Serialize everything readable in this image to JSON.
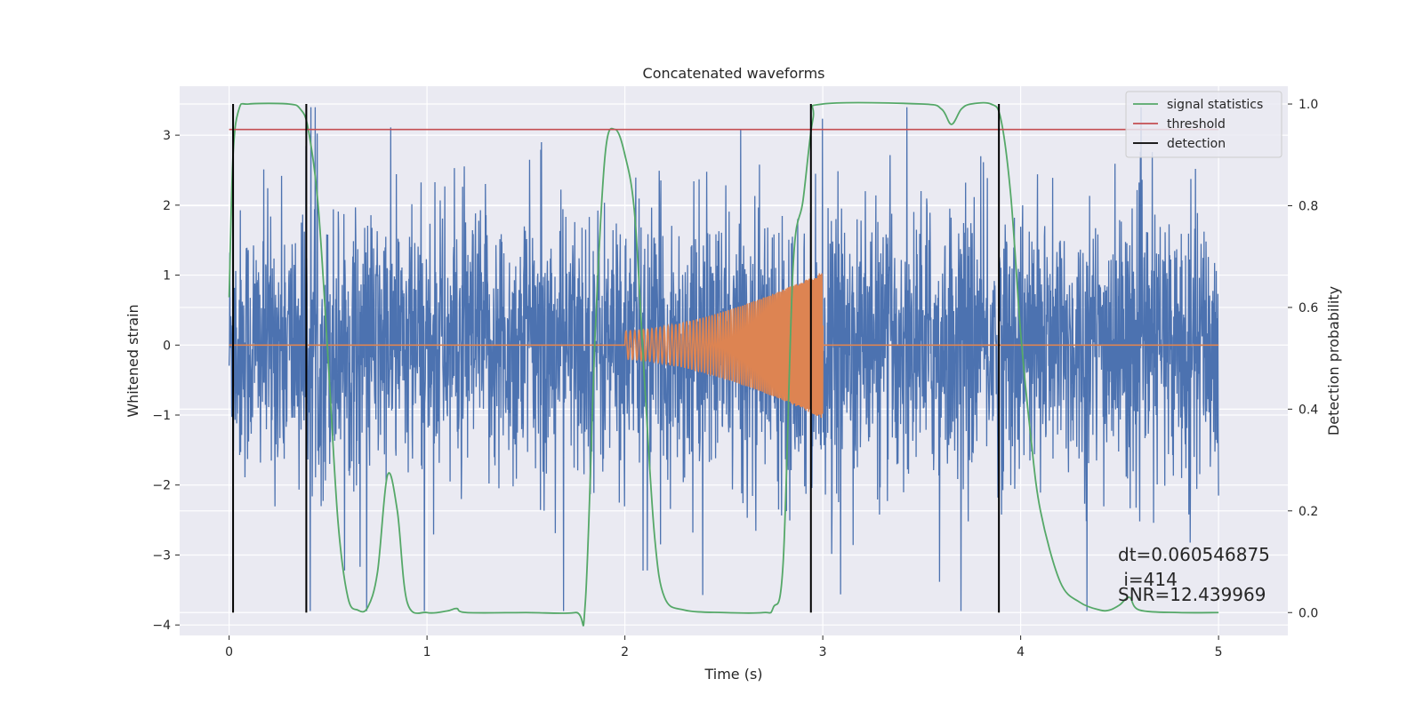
{
  "chart_data": {
    "type": "line",
    "title": "Concatenated waveforms",
    "xlabel": "Time (s)",
    "ylabel": "Whitened strain",
    "y2label": "Detection probability",
    "xlim": [
      -0.25,
      5.35
    ],
    "ylim": [
      -4.15,
      3.7
    ],
    "y2lim": [
      -0.045,
      1.035
    ],
    "x_ticks": [
      0,
      1,
      2,
      3,
      4,
      5
    ],
    "x_tick_labels": [
      "0",
      "1",
      "2",
      "3",
      "4",
      "5"
    ],
    "y_ticks": [
      -4,
      -3,
      -2,
      -1,
      0,
      1,
      2,
      3
    ],
    "y_tick_labels": [
      "−4",
      "−3",
      "−2",
      "−1",
      "0",
      "1",
      "2",
      "3"
    ],
    "y2_ticks": [
      0.0,
      0.2,
      0.4,
      0.6,
      0.8,
      1.0
    ],
    "y2_tick_labels": [
      "0.0",
      "0.2",
      "0.4",
      "0.6",
      "0.8",
      "1.0"
    ],
    "grid": true,
    "legend_position": "top-right",
    "legend": [
      {
        "label": "signal statistics",
        "color": "#55a868",
        "kind": "line"
      },
      {
        "label": "threshold",
        "color": "#c44e52",
        "kind": "line"
      },
      {
        "label": "detection",
        "color": "#000000",
        "kind": "line"
      }
    ],
    "noise_series": {
      "color": "#4c72b0",
      "x_range": [
        0,
        5
      ],
      "typical_envelope": [
        -1.2,
        1.2
      ],
      "peak_range": [
        -3.8,
        3.4
      ]
    },
    "injected_signal": {
      "color": "#dd8452",
      "x_range": [
        2.0,
        3.0
      ],
      "amplitude_start": 0.2,
      "amplitude_end": 1.05,
      "chirp": true
    },
    "signal_statistics": {
      "color": "#55a868",
      "axis": "right",
      "x": [
        0,
        0.02,
        0.05,
        0.1,
        0.3,
        0.36,
        0.4,
        0.45,
        0.5,
        0.55,
        0.6,
        0.65,
        0.7,
        0.75,
        0.8,
        0.85,
        0.9,
        1.0,
        1.1,
        1.15,
        1.2,
        1.5,
        1.75,
        1.8,
        1.85,
        1.9,
        1.95,
        2.0,
        2.05,
        2.1,
        2.15,
        2.2,
        2.3,
        2.5,
        2.7,
        2.75,
        2.8,
        2.85,
        2.9,
        2.95,
        3.0,
        3.5,
        3.6,
        3.65,
        3.7,
        3.75,
        3.85,
        3.9,
        3.95,
        4.0,
        4.05,
        4.1,
        4.2,
        4.3,
        4.4,
        4.45,
        4.5,
        4.55,
        4.6,
        4.8,
        5.0
      ],
      "y": [
        0.62,
        0.9,
        0.99,
        1.0,
        1.0,
        0.99,
        0.95,
        0.8,
        0.5,
        0.18,
        0.03,
        0.005,
        0.01,
        0.08,
        0.27,
        0.2,
        0.02,
        0.0,
        0.003,
        0.008,
        0.0,
        0.0,
        0.0,
        0.02,
        0.55,
        0.9,
        0.95,
        0.9,
        0.78,
        0.45,
        0.15,
        0.03,
        0.005,
        0.0,
        0.0,
        0.01,
        0.1,
        0.68,
        0.81,
        0.97,
        1.0,
        1.0,
        0.99,
        0.96,
        0.99,
        1.0,
        1.0,
        0.97,
        0.82,
        0.55,
        0.35,
        0.2,
        0.06,
        0.02,
        0.005,
        0.005,
        0.015,
        0.03,
        0.005,
        0.0,
        0.0
      ]
    },
    "threshold": {
      "color": "#c44e52",
      "axis": "right",
      "value": 0.95,
      "x_range": [
        0,
        5
      ]
    },
    "detections": {
      "color": "#000000",
      "x": [
        0.02,
        0.39,
        2.94,
        3.89
      ]
    },
    "annotations": [
      "dt=0.060546875",
      " i=414",
      "SNR=12.439969"
    ]
  }
}
